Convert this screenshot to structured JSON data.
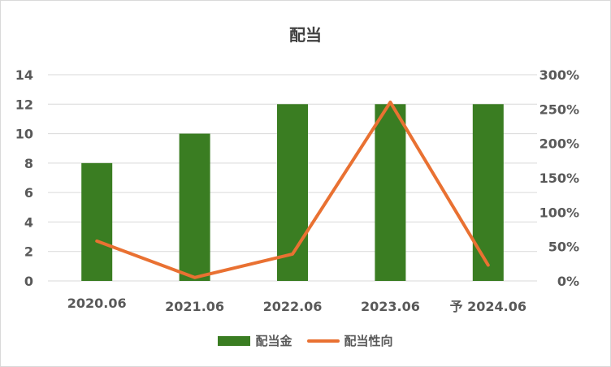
{
  "chart_data": {
    "type": "bar",
    "title": "配当",
    "categories": [
      "2020.06",
      "2021.06",
      "2022.06",
      "2023.06",
      "予 2024.06"
    ],
    "series": [
      {
        "name": "配当金",
        "type": "bar",
        "axis": "left",
        "color": "#3a7d22",
        "values": [
          8,
          10,
          12,
          12,
          12
        ]
      },
      {
        "name": "配当性向",
        "type": "line",
        "axis": "right",
        "color": "#e97132",
        "values": [
          58,
          5,
          39,
          260,
          23
        ]
      }
    ],
    "y_left": {
      "min": 0,
      "max": 14,
      "ticks": [
        "0",
        "2",
        "4",
        "6",
        "8",
        "10",
        "12",
        "14"
      ]
    },
    "y_right": {
      "min": 0,
      "max": 300,
      "ticks": [
        "0%",
        "50%",
        "100%",
        "150%",
        "200%",
        "250%",
        "300%"
      ]
    },
    "grid": true,
    "legend_position": "bottom"
  }
}
